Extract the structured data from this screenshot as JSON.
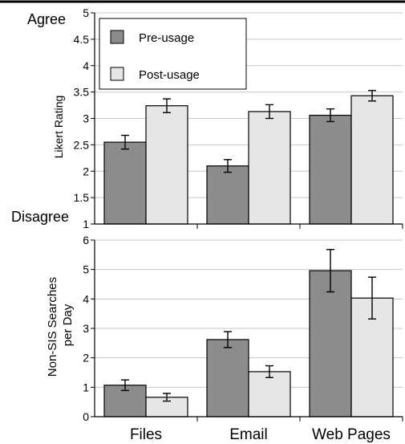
{
  "colors": {
    "pre": "#8c8c8c",
    "post": "#e6e6e6",
    "grid": "#c8c8c8",
    "axis": "#000000"
  },
  "side_labels": {
    "top": "Agree",
    "bottom": "Disagree"
  },
  "legend": {
    "pre": "Pre-usage",
    "post": "Post-usage"
  },
  "chart_data": [
    {
      "type": "bar",
      "ylabel": "Likert Rating",
      "ylim": [
        1,
        5
      ],
      "yticks": [
        "1",
        "1.5",
        "2",
        "2.5",
        "3",
        "3.5",
        "4",
        "4.5",
        "5"
      ],
      "grid": true,
      "legend_position": "top-left",
      "categories": [
        "Files",
        "Email",
        "Web Pages"
      ],
      "series": [
        {
          "name": "Pre-usage",
          "values": [
            2.55,
            2.1,
            3.06
          ],
          "errors": [
            0.13,
            0.12,
            0.12
          ]
        },
        {
          "name": "Post-usage",
          "values": [
            3.24,
            3.13,
            3.43
          ],
          "errors": [
            0.13,
            0.13,
            0.1
          ]
        }
      ]
    },
    {
      "type": "bar",
      "ylabel": "Non-SIS Searches per Day",
      "ylim": [
        0,
        6
      ],
      "yticks": [
        "0",
        "1",
        "2",
        "3",
        "4",
        "5",
        "6"
      ],
      "grid": true,
      "categories": [
        "Files",
        "Email",
        "Web Pages"
      ],
      "series": [
        {
          "name": "Pre-usage",
          "values": [
            1.07,
            2.62,
            4.96
          ],
          "errors": [
            0.18,
            0.27,
            0.72
          ]
        },
        {
          "name": "Post-usage",
          "values": [
            0.66,
            1.53,
            4.03
          ],
          "errors": [
            0.13,
            0.2,
            0.71
          ]
        }
      ]
    }
  ]
}
